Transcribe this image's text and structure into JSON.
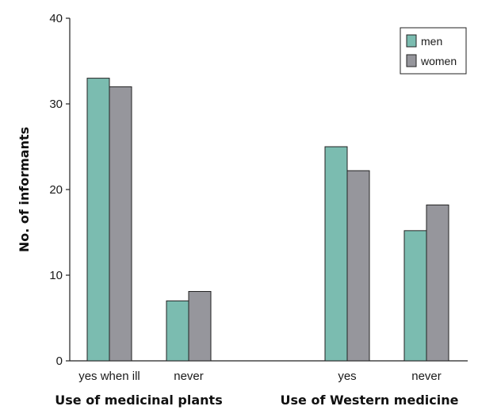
{
  "chart_data": {
    "type": "bar",
    "ylabel": "No. of informants",
    "ylim": [
      0,
      40
    ],
    "yticks": [
      "0",
      "10",
      "20",
      "30",
      "40"
    ],
    "grid": false,
    "legend_position": "top-right",
    "categories": [
      "yes when ill",
      "never",
      "yes",
      "never"
    ],
    "groups": [
      {
        "label": "Use of medicinal plants",
        "category_indices": [
          0,
          1
        ]
      },
      {
        "label": "Use of Western medicine",
        "category_indices": [
          2,
          3
        ]
      }
    ],
    "series": [
      {
        "name": "men",
        "color": "#7bbcb0",
        "values": [
          33,
          7,
          25,
          15.2
        ]
      },
      {
        "name": "women",
        "color": "#96969c",
        "values": [
          32,
          8.1,
          22.2,
          18.2
        ]
      }
    ]
  }
}
